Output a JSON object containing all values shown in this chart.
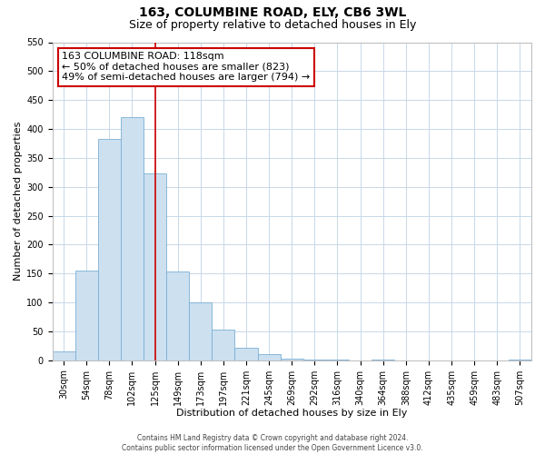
{
  "title": "163, COLUMBINE ROAD, ELY, CB6 3WL",
  "subtitle": "Size of property relative to detached houses in Ely",
  "xlabel": "Distribution of detached houses by size in Ely",
  "ylabel": "Number of detached properties",
  "bar_labels": [
    "30sqm",
    "54sqm",
    "78sqm",
    "102sqm",
    "125sqm",
    "149sqm",
    "173sqm",
    "197sqm",
    "221sqm",
    "245sqm",
    "269sqm",
    "292sqm",
    "316sqm",
    "340sqm",
    "364sqm",
    "388sqm",
    "412sqm",
    "435sqm",
    "459sqm",
    "483sqm",
    "507sqm"
  ],
  "bar_heights": [
    15,
    155,
    383,
    420,
    323,
    153,
    100,
    53,
    22,
    11,
    3,
    1,
    1,
    0,
    1,
    0,
    0,
    0,
    0,
    0,
    1
  ],
  "bar_color": "#cce0f0",
  "bar_edge_color": "#7aafd4",
  "vline_x": 4,
  "vline_color": "#cc0000",
  "ylim": [
    0,
    550
  ],
  "yticks": [
    0,
    50,
    100,
    150,
    200,
    250,
    300,
    350,
    400,
    450,
    500,
    550
  ],
  "annotation_title": "163 COLUMBINE ROAD: 118sqm",
  "annotation_line1": "← 50% of detached houses are smaller (823)",
  "annotation_line2": "49% of semi-detached houses are larger (794) →",
  "annotation_box_color": "#ffffff",
  "annotation_box_edge": "#cc0000",
  "footer1": "Contains HM Land Registry data © Crown copyright and database right 2024.",
  "footer2": "Contains public sector information licensed under the Open Government Licence v3.0.",
  "background_color": "#ffffff",
  "grid_color": "#c8d8e8",
  "title_fontsize": 10,
  "subtitle_fontsize": 9,
  "ylabel_fontsize": 8,
  "xlabel_fontsize": 8,
  "tick_fontsize": 7,
  "footer_fontsize": 5.5,
  "annot_fontsize": 8
}
